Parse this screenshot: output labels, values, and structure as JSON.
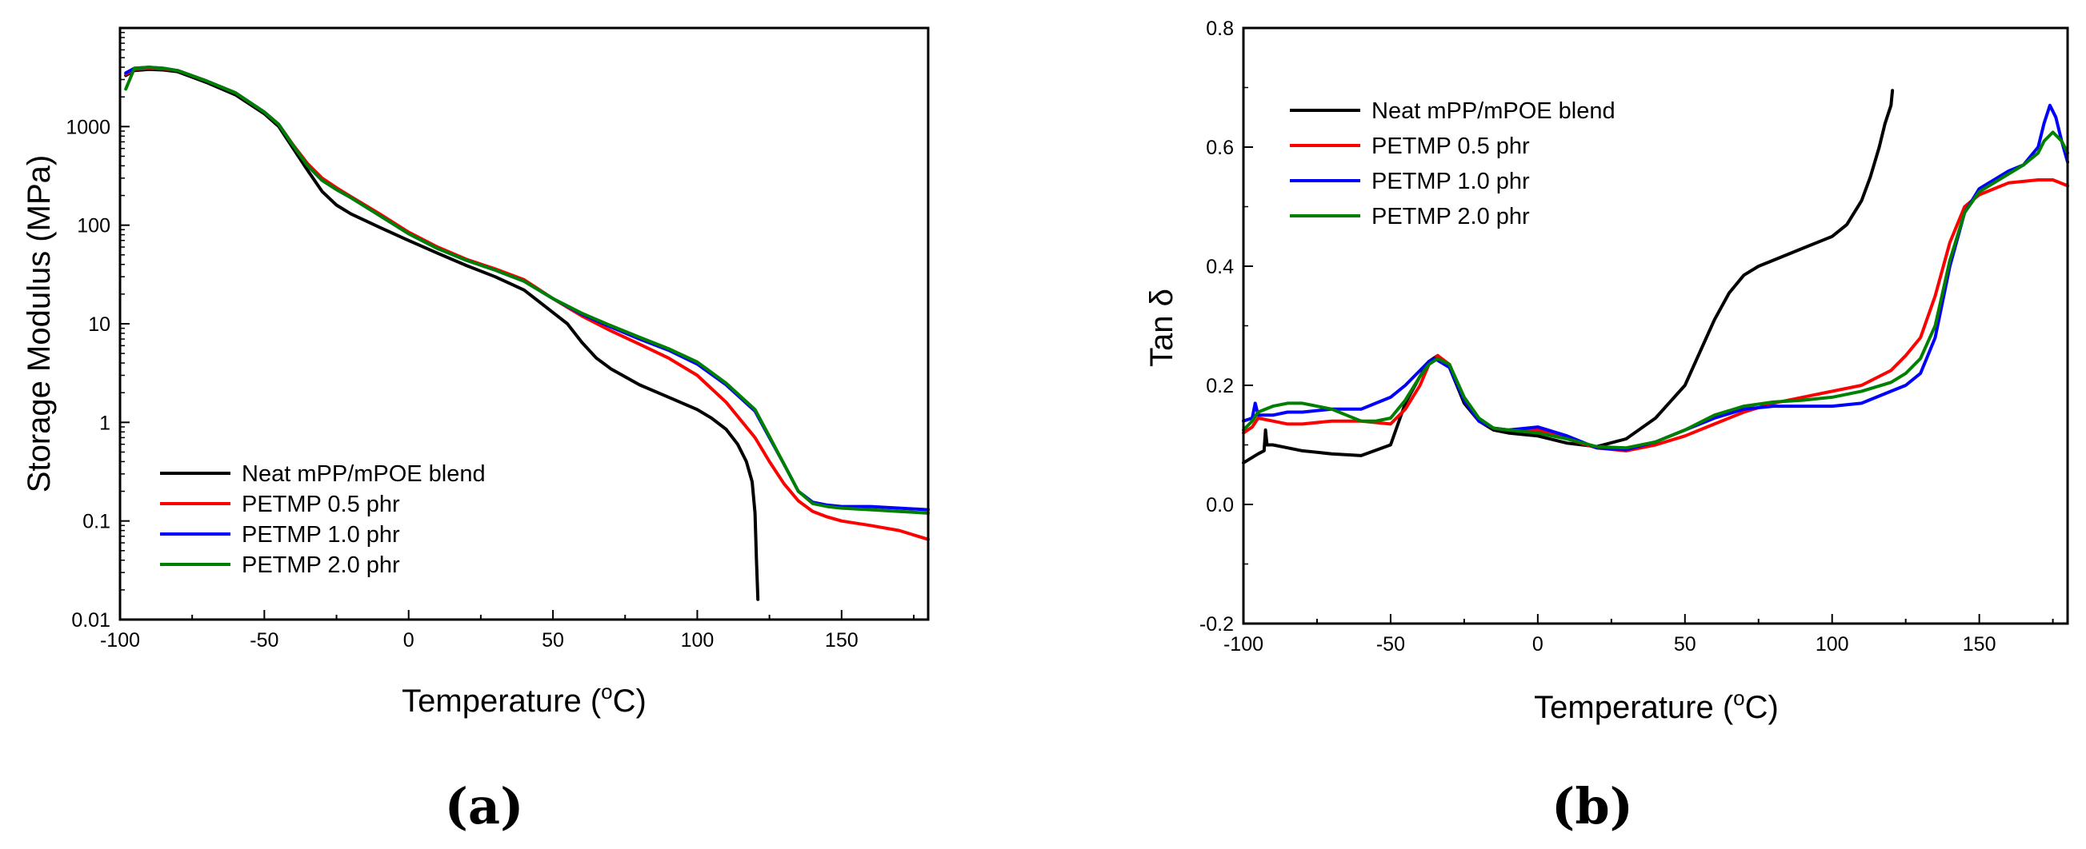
{
  "chart_data": [
    {
      "type": "line",
      "panel_label": "(a)",
      "xlabel": "Temperature (",
      "xlabel_sup": "o",
      "xlabel_tail": "C)",
      "ylabel": "Storage Modulus (MPa)",
      "xlim": [
        -100,
        180
      ],
      "ylim": [
        0.01,
        10000
      ],
      "yscale": "log",
      "xticks": [
        -100,
        -50,
        0,
        50,
        100,
        150
      ],
      "xtick_labels": [
        "-100",
        "-50",
        "0",
        "50",
        "100",
        "150"
      ],
      "yticks": [
        0.01,
        0.1,
        1,
        10,
        100,
        1000
      ],
      "ytick_labels": [
        "0.01",
        "0.1",
        "1",
        "10",
        "100",
        "1000"
      ],
      "legend_position": "bottom-left",
      "series": [
        {
          "name": "Neat mPP/mPOE blend",
          "color": "#000000",
          "x": [
            -98,
            -95,
            -90,
            -85,
            -80,
            -70,
            -60,
            -50,
            -45,
            -40,
            -35,
            -30,
            -25,
            -20,
            -10,
            0,
            10,
            20,
            30,
            40,
            50,
            55,
            60,
            65,
            70,
            80,
            90,
            100,
            105,
            110,
            114,
            117,
            119,
            120,
            120.5,
            121
          ],
          "y": [
            3300,
            3700,
            3800,
            3750,
            3600,
            2800,
            2100,
            1350,
            1000,
            600,
            360,
            220,
            160,
            130,
            95,
            70,
            52,
            39,
            30,
            22,
            13,
            10,
            6.5,
            4.5,
            3.5,
            2.4,
            1.8,
            1.35,
            1.1,
            0.85,
            0.6,
            0.4,
            0.25,
            0.12,
            0.04,
            0.016
          ]
        },
        {
          "name": "PETMP 0.5 phr",
          "color": "#ff0000",
          "x": [
            -98,
            -95,
            -90,
            -85,
            -80,
            -70,
            -60,
            -50,
            -45,
            -40,
            -35,
            -30,
            -25,
            -20,
            -10,
            0,
            10,
            20,
            30,
            40,
            50,
            60,
            70,
            80,
            90,
            100,
            110,
            120,
            125,
            130,
            135,
            140,
            145,
            150,
            160,
            170,
            180
          ],
          "y": [
            3400,
            3800,
            3900,
            3850,
            3700,
            2900,
            2200,
            1400,
            1050,
            650,
            420,
            300,
            240,
            195,
            130,
            85,
            60,
            45,
            36,
            28,
            18,
            12,
            8.5,
            6.2,
            4.5,
            3.0,
            1.6,
            0.7,
            0.4,
            0.24,
            0.16,
            0.125,
            0.11,
            0.1,
            0.09,
            0.08,
            0.065
          ]
        },
        {
          "name": "PETMP 1.0 phr",
          "color": "#0000ff",
          "x": [
            -98,
            -95,
            -90,
            -85,
            -80,
            -70,
            -60,
            -50,
            -45,
            -40,
            -35,
            -30,
            -25,
            -20,
            -10,
            0,
            10,
            20,
            30,
            40,
            50,
            60,
            70,
            80,
            90,
            100,
            110,
            120,
            125,
            130,
            135,
            140,
            145,
            150,
            160,
            170,
            180
          ],
          "y": [
            3500,
            3900,
            4000,
            3900,
            3700,
            2900,
            2200,
            1400,
            1050,
            640,
            400,
            285,
            230,
            190,
            125,
            82,
            58,
            44,
            35,
            27,
            18,
            12.5,
            9.3,
            7.0,
            5.4,
            3.9,
            2.4,
            1.3,
            0.7,
            0.38,
            0.2,
            0.155,
            0.145,
            0.14,
            0.14,
            0.135,
            0.13
          ]
        },
        {
          "name": "PETMP 2.0 phr",
          "color": "#008000",
          "x": [
            -98,
            -95,
            -90,
            -85,
            -80,
            -70,
            -60,
            -50,
            -45,
            -40,
            -35,
            -30,
            -25,
            -20,
            -10,
            0,
            10,
            20,
            30,
            40,
            50,
            60,
            70,
            80,
            90,
            100,
            110,
            120,
            125,
            130,
            135,
            140,
            145,
            150,
            160,
            170,
            180
          ],
          "y": [
            2400,
            3900,
            4000,
            3900,
            3700,
            2900,
            2200,
            1400,
            1050,
            640,
            400,
            285,
            230,
            190,
            125,
            82,
            58,
            44,
            35,
            27,
            18,
            12.8,
            9.6,
            7.3,
            5.6,
            4.1,
            2.5,
            1.35,
            0.72,
            0.38,
            0.2,
            0.15,
            0.14,
            0.135,
            0.13,
            0.125,
            0.12
          ]
        }
      ]
    },
    {
      "type": "line",
      "panel_label": "(b)",
      "xlabel": "Temperature (",
      "xlabel_sup": "o",
      "xlabel_tail": "C)",
      "ylabel": "Tan δ",
      "xlim": [
        -100,
        180
      ],
      "ylim": [
        -0.2,
        0.8
      ],
      "yscale": "linear",
      "xticks": [
        -100,
        -50,
        0,
        50,
        100,
        150
      ],
      "xtick_labels": [
        "-100",
        "-50",
        "0",
        "50",
        "100",
        "150"
      ],
      "yticks": [
        -0.2,
        0.0,
        0.2,
        0.4,
        0.6,
        0.8
      ],
      "ytick_labels": [
        "-0.2",
        "0.0",
        "0.2",
        "0.4",
        "0.6",
        "0.8"
      ],
      "legend_position": "top-left",
      "series": [
        {
          "name": "Neat mPP/mPOE blend",
          "color": "#000000",
          "x": [
            -100,
            -95,
            -93,
            -92.5,
            -92,
            -90,
            -85,
            -80,
            -70,
            -60,
            -50,
            -45,
            -40,
            -37,
            -34,
            -30,
            -25,
            -20,
            -15,
            -10,
            0,
            10,
            20,
            30,
            40,
            50,
            55,
            60,
            65,
            70,
            75,
            80,
            90,
            100,
            105,
            110,
            113,
            116,
            118,
            120,
            120.5
          ],
          "y": [
            0.07,
            0.085,
            0.09,
            0.125,
            0.1,
            0.1,
            0.095,
            0.09,
            0.085,
            0.082,
            0.1,
            0.17,
            0.215,
            0.24,
            0.25,
            0.23,
            0.17,
            0.14,
            0.125,
            0.12,
            0.115,
            0.103,
            0.097,
            0.11,
            0.145,
            0.2,
            0.255,
            0.31,
            0.355,
            0.385,
            0.4,
            0.41,
            0.43,
            0.45,
            0.47,
            0.51,
            0.55,
            0.6,
            0.64,
            0.67,
            0.695
          ]
        },
        {
          "name": "PETMP 0.5 phr",
          "color": "#ff0000",
          "x": [
            -100,
            -97,
            -95,
            -90,
            -85,
            -80,
            -70,
            -60,
            -50,
            -45,
            -40,
            -37,
            -34,
            -30,
            -25,
            -20,
            -15,
            -10,
            0,
            10,
            20,
            30,
            40,
            50,
            60,
            70,
            80,
            90,
            100,
            110,
            120,
            125,
            130,
            135,
            140,
            145,
            150,
            160,
            170,
            175,
            180
          ],
          "y": [
            0.12,
            0.13,
            0.145,
            0.14,
            0.135,
            0.135,
            0.14,
            0.14,
            0.135,
            0.16,
            0.2,
            0.235,
            0.25,
            0.235,
            0.175,
            0.14,
            0.128,
            0.125,
            0.125,
            0.11,
            0.095,
            0.09,
            0.1,
            0.115,
            0.135,
            0.155,
            0.17,
            0.18,
            0.19,
            0.2,
            0.225,
            0.25,
            0.28,
            0.35,
            0.44,
            0.5,
            0.52,
            0.54,
            0.545,
            0.545,
            0.535
          ]
        },
        {
          "name": "PETMP 1.0 phr",
          "color": "#0000ff",
          "x": [
            -100,
            -97,
            -96,
            -95,
            -90,
            -85,
            -80,
            -70,
            -60,
            -50,
            -45,
            -40,
            -37,
            -35,
            -30,
            -25,
            -20,
            -15,
            -10,
            0,
            10,
            20,
            30,
            40,
            50,
            60,
            70,
            80,
            90,
            100,
            110,
            120,
            125,
            130,
            135,
            140,
            145,
            150,
            160,
            165,
            170,
            172,
            174,
            176,
            178,
            180
          ],
          "y": [
            0.14,
            0.145,
            0.17,
            0.15,
            0.15,
            0.155,
            0.155,
            0.16,
            0.16,
            0.18,
            0.2,
            0.225,
            0.24,
            0.245,
            0.23,
            0.175,
            0.14,
            0.128,
            0.125,
            0.13,
            0.115,
            0.095,
            0.092,
            0.105,
            0.125,
            0.145,
            0.16,
            0.165,
            0.165,
            0.165,
            0.17,
            0.19,
            0.2,
            0.22,
            0.28,
            0.4,
            0.49,
            0.53,
            0.56,
            0.57,
            0.6,
            0.64,
            0.67,
            0.65,
            0.61,
            0.575
          ]
        },
        {
          "name": "PETMP 2.0 phr",
          "color": "#008000",
          "x": [
            -100,
            -97,
            -95,
            -90,
            -85,
            -80,
            -75,
            -70,
            -65,
            -60,
            -55,
            -50,
            -45,
            -40,
            -37,
            -34,
            -30,
            -25,
            -20,
            -15,
            -10,
            0,
            10,
            20,
            30,
            40,
            50,
            60,
            70,
            80,
            90,
            100,
            110,
            120,
            125,
            130,
            135,
            140,
            145,
            150,
            160,
            165,
            170,
            172,
            175,
            178,
            180
          ],
          "y": [
            0.125,
            0.14,
            0.155,
            0.165,
            0.17,
            0.17,
            0.165,
            0.16,
            0.15,
            0.14,
            0.14,
            0.145,
            0.175,
            0.215,
            0.235,
            0.245,
            0.235,
            0.18,
            0.145,
            0.128,
            0.125,
            0.12,
            0.11,
            0.097,
            0.095,
            0.105,
            0.125,
            0.15,
            0.165,
            0.172,
            0.175,
            0.18,
            0.19,
            0.205,
            0.22,
            0.245,
            0.3,
            0.41,
            0.49,
            0.525,
            0.555,
            0.57,
            0.59,
            0.61,
            0.625,
            0.61,
            0.59
          ]
        }
      ]
    }
  ]
}
